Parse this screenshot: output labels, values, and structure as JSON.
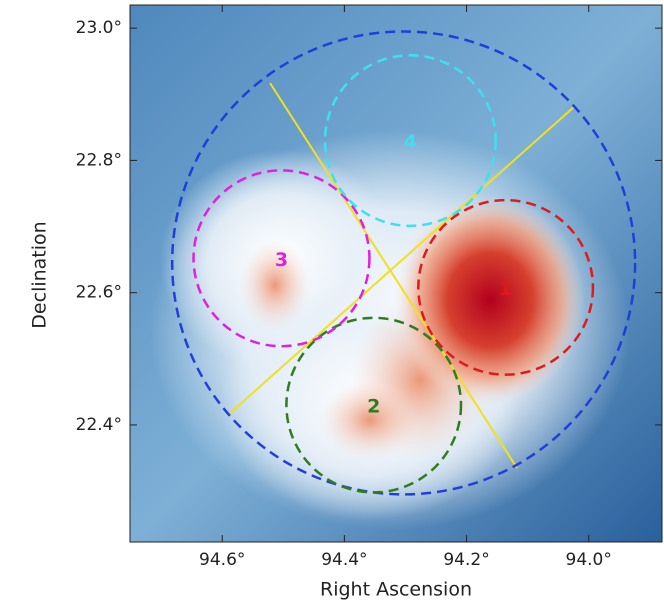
{
  "chart_data": {
    "type": "skymap",
    "xlabel": "Right Ascension",
    "ylabel": "Declination",
    "xlim": [
      94.751,
      93.88
    ],
    "ylim": [
      22.223,
      23.035
    ],
    "xticks": [
      {
        "value": 94.6,
        "label": "94.6°"
      },
      {
        "value": 94.4,
        "label": "94.4°"
      },
      {
        "value": 94.2,
        "label": "94.2°"
      },
      {
        "value": 94.0,
        "label": "94.0°"
      }
    ],
    "yticks": [
      {
        "value": 22.4,
        "label": "22.4°"
      },
      {
        "value": 22.6,
        "label": "22.6°"
      },
      {
        "value": 22.8,
        "label": "22.8°"
      },
      {
        "value": 23.0,
        "label": "23.0°"
      }
    ],
    "regions": [
      {
        "ra": 94.303,
        "dec": 22.645,
        "radius": 0.35,
        "color": "#1f3fdd"
      },
      {
        "label": "1",
        "ra": 94.136,
        "dec": 22.608,
        "radius": 0.132,
        "color": "#e01a1a"
      },
      {
        "label": "2",
        "ra": 94.352,
        "dec": 22.43,
        "radius": 0.132,
        "color": "#2e7d1e"
      },
      {
        "label": "3",
        "ra": 94.503,
        "dec": 22.652,
        "radius": 0.133,
        "color": "#e020e0"
      },
      {
        "label": "4",
        "ra": 94.292,
        "dec": 22.83,
        "radius": 0.129,
        "color": "#3de0f0"
      }
    ]
  }
}
